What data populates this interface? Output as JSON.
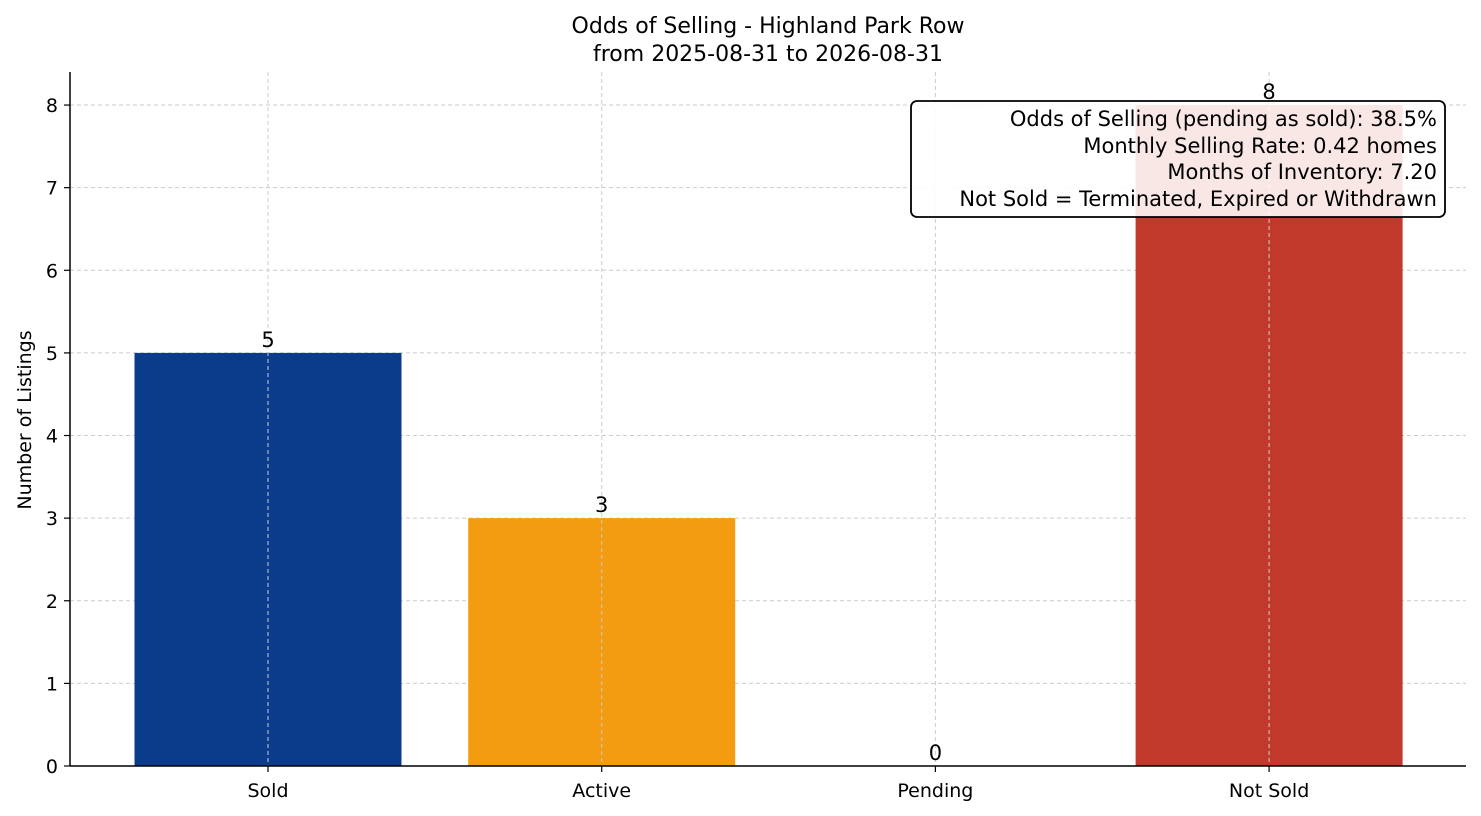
{
  "chart_data": {
    "type": "bar",
    "title": "Odds of Selling - Highland Park Row",
    "subtitle": "from 2025-08-31 to 2026-08-31",
    "xlabel": "",
    "ylabel": "Number of Listings",
    "categories": [
      "Sold",
      "Active",
      "Pending",
      "Not Sold"
    ],
    "values": [
      5,
      3,
      0,
      8
    ],
    "colors": [
      "#0b3c8c",
      "#f39c12",
      "#5b8fd1",
      "#c0392b"
    ],
    "ylim": [
      0,
      8.4
    ],
    "yticks": [
      0,
      1,
      2,
      3,
      4,
      5,
      6,
      7,
      8
    ],
    "grid": true,
    "annotation": {
      "placement": "top-right",
      "lines": [
        "Odds of Selling (pending as sold): 38.5%",
        "Monthly Selling Rate: 0.42 homes",
        "Months of Inventory: 7.20",
        "Not Sold = Terminated, Expired or Withdrawn"
      ]
    }
  }
}
